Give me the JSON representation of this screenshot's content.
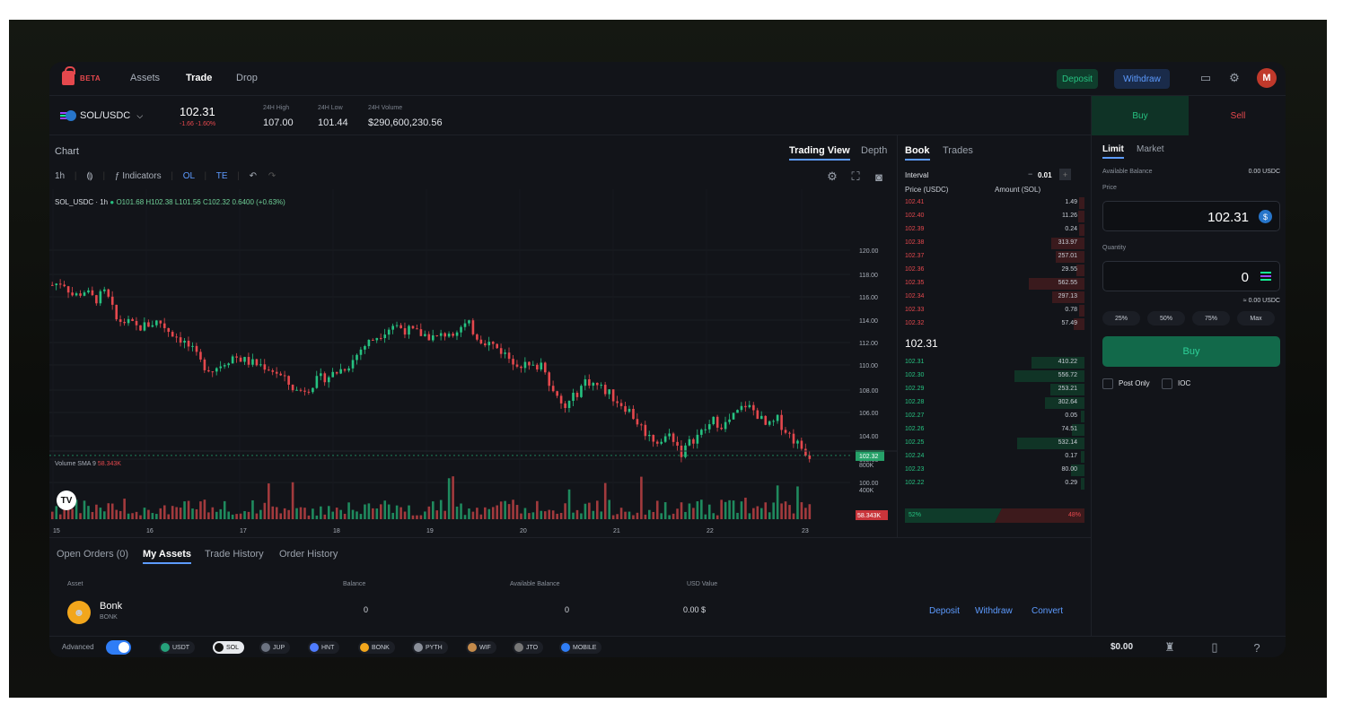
{
  "nav": {
    "beta": "BETA",
    "items": [
      "Assets",
      "Trade",
      "Drop"
    ],
    "deposit": "Deposit",
    "withdraw": "Withdraw",
    "avatar": "M"
  },
  "pair": {
    "name": "SOL/USDC",
    "price": "102.31",
    "change": "-1.66 -1.60%",
    "stats": [
      {
        "label": "24H High",
        "value": "107.00"
      },
      {
        "label": "24H Low",
        "value": "101.44"
      },
      {
        "label": "24H Volume",
        "value": "$290,600,230.56"
      }
    ]
  },
  "chart": {
    "title": "Chart",
    "tabs": [
      "Trading View",
      "Depth"
    ],
    "interval": "1h",
    "indicators": "Indicators",
    "ol": "OL",
    "te": "TE",
    "symbol": "SOL_USDC · 1h",
    "ohlc": "O101.68 H102.38 L101.56 C102.32 0.6400 (+0.63%)",
    "volume_label": "Volume SMA 9",
    "volume_value": "58.343K",
    "last_price_tag": "102.32",
    "last_volume_tag": "58.343K"
  },
  "chart_data": {
    "type": "candlestick",
    "y_ticks": [
      "120.00",
      "118.00",
      "116.00",
      "114.00",
      "112.00",
      "110.00",
      "108.00",
      "106.00",
      "104.00",
      "102.00",
      "100.00"
    ],
    "vol_ticks": [
      "800K",
      "400K"
    ],
    "x_ticks": [
      "15",
      "16",
      "17",
      "18",
      "19",
      "20",
      "21",
      "22",
      "23"
    ],
    "close_path": [
      117,
      117.3,
      116,
      116.5,
      115.7,
      116.4,
      114,
      113.8,
      113.3,
      113.6,
      113.9,
      113,
      112.4,
      111.5,
      110.2,
      109.7,
      110.3,
      110.9,
      110.5,
      110.2,
      110,
      109.5,
      108.6,
      107.8,
      108.2,
      108.9,
      109.2,
      109.7,
      110.3,
      111.6,
      112.3,
      113,
      113.6,
      113.2,
      112.9,
      112.7,
      112.4,
      112.9,
      113.2,
      113.6,
      112.4,
      112,
      111.4,
      110.6,
      110.2,
      109.8,
      110.4,
      107.6,
      106.3,
      107.5,
      108.8,
      108.4,
      107.8,
      107,
      106.3,
      105,
      103.9,
      103.5,
      104.2,
      102.5,
      103.7,
      104.4,
      105.3,
      104.9,
      105.8,
      106.7,
      106,
      104.7,
      105.4,
      104.2,
      103.2,
      102.32
    ]
  },
  "book": {
    "tabs": [
      "Book",
      "Trades"
    ],
    "interval_label": "Interval",
    "interval_value": "0.01",
    "price_hdr": "Price (USDC)",
    "amount_hdr": "Amount (SOL)",
    "asks": [
      [
        "102.41",
        "1.49"
      ],
      [
        "102.40",
        "11.26"
      ],
      [
        "102.39",
        "0.24"
      ],
      [
        "102.38",
        "313.97"
      ],
      [
        "102.37",
        "257.01"
      ],
      [
        "102.36",
        "29.55"
      ],
      [
        "102.35",
        "562.55"
      ],
      [
        "102.34",
        "297.13"
      ],
      [
        "102.33",
        "0.78"
      ],
      [
        "102.32",
        "57.49"
      ]
    ],
    "mid": "102.31",
    "bids": [
      [
        "102.31",
        "410.22"
      ],
      [
        "102.30",
        "556.72"
      ],
      [
        "102.29",
        "253.21"
      ],
      [
        "102.28",
        "302.64"
      ],
      [
        "102.27",
        "0.05"
      ],
      [
        "102.26",
        "74.51"
      ],
      [
        "102.25",
        "532.14"
      ],
      [
        "102.24",
        "0.17"
      ],
      [
        "102.23",
        "80.00"
      ],
      [
        "102.22",
        "0.29"
      ]
    ],
    "bid_pct": "52%",
    "ask_pct": "48%"
  },
  "bottom": {
    "tabs": [
      "Open Orders (0)",
      "My Assets",
      "Trade History",
      "Order History"
    ],
    "headers": [
      "Asset",
      "Balance",
      "Available Balance",
      "USD Value"
    ],
    "row": {
      "name": "Bonk",
      "symbol": "BONK",
      "balance": "0",
      "available": "0",
      "usd": "0.00 $"
    },
    "actions": [
      "Deposit",
      "Withdraw",
      "Convert"
    ]
  },
  "side": {
    "buy": "Buy",
    "sell": "Sell",
    "order_tabs": [
      "Limit",
      "Market"
    ],
    "available_label": "Available Balance",
    "available_value": "0.00 USDC",
    "price_label": "Price",
    "price_value": "102.31",
    "qty_label": "Quantity",
    "qty_value": "0",
    "approx": "≈ 0.00 USDC",
    "pcts": [
      "25%",
      "50%",
      "75%",
      "Max"
    ],
    "buy_button": "Buy",
    "post_only": "Post Only",
    "ioc": "IOC"
  },
  "footer": {
    "advanced": "Advanced",
    "tokens": [
      "USDT",
      "SOL",
      "JUP",
      "HNT",
      "BONK",
      "PYTH",
      "WIF",
      "JTO",
      "MOBILE"
    ],
    "balance": "$0.00"
  }
}
